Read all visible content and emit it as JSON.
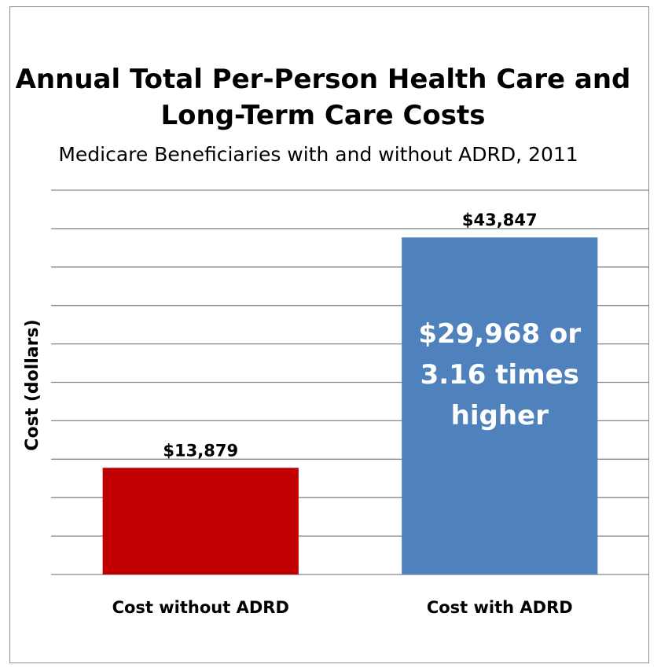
{
  "chart_data": {
    "type": "bar",
    "title_lines": [
      "Annual Total Per-Person Health Care and",
      "Long-Term Care Costs"
    ],
    "subtitle": "Medicare Beneficiaries with and without ADRD, 2011",
    "xlabel": "",
    "ylabel": "Cost (dollars)",
    "categories": [
      "Cost without ADRD",
      "Cost with ADRD"
    ],
    "values": [
      13879,
      43847
    ],
    "data_labels": [
      "$13,879",
      "$43,847"
    ],
    "bar_colors": [
      "#c00000",
      "#4f81bd"
    ],
    "ylim": [
      0,
      50000
    ],
    "y_tick_step": 5000,
    "y_tick_labels_shown": false,
    "grid": true,
    "legend": "none",
    "annotation": {
      "lines": [
        "$29,968 or",
        "3.16 times",
        "higher"
      ],
      "on_category": "Cost with ADRD"
    }
  }
}
